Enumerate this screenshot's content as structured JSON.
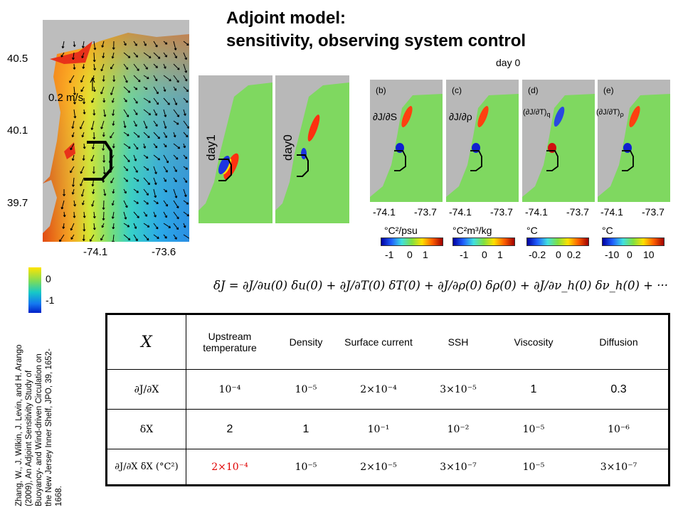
{
  "title_line1": "Adjoint model:",
  "title_line2": "sensitivity, observing system control",
  "day0_top": "day 0",
  "main_map": {
    "lat_ticks": [
      "40.5",
      "40.1",
      "39.7"
    ],
    "lon_ticks": [
      "-74.1",
      "-73.6"
    ],
    "velocity_scale": "0.2 m/s",
    "colorbar_ticks": [
      "0",
      "-1"
    ]
  },
  "mid_panels": {
    "labels": [
      "day1",
      "day0"
    ]
  },
  "right_panels": [
    {
      "letter": "(b)",
      "quantity": "∂J/∂S",
      "unit": "°C²/psu",
      "ticks": [
        "-1",
        "0",
        "1"
      ]
    },
    {
      "letter": "(c)",
      "quantity": "∂J/∂ρ",
      "unit": "°C²m³/kg",
      "ticks": [
        "-1",
        "0",
        "1"
      ]
    },
    {
      "letter": "(d)",
      "quantity": "(∂J/∂T)",
      "subscript": "q",
      "unit": "°C",
      "ticks": [
        "-0.2",
        "0",
        "0.2"
      ]
    },
    {
      "letter": "(e)",
      "quantity": "(∂J/∂T)",
      "subscript": "ρ",
      "unit": "°C",
      "ticks": [
        "-10",
        "0",
        "10"
      ]
    }
  ],
  "right_lon_ticks": [
    "-74.1",
    "-73.7"
  ],
  "equation": "δJ = ∂J/∂u(0) δu(0) + ∂J/∂T(0) δT(0) + ∂J/∂ρ(0) δρ(0) + ∂J/∂ν_h(0) δν_h(0) + ···",
  "table": {
    "headers": [
      "X",
      "Upstream temperature",
      "Density",
      "Surface current",
      "SSH",
      "Viscosity",
      "Diffusion"
    ],
    "rows": [
      {
        "label": "∂J/∂X",
        "cells": [
          "10⁻⁴",
          "10⁻⁵",
          "2×10⁻⁴",
          "3×10⁻⁵",
          "1",
          "0.3"
        ]
      },
      {
        "label": "δX",
        "cells": [
          "2",
          "1",
          "10⁻¹",
          "10⁻²",
          "10⁻⁵",
          "10⁻⁶"
        ]
      },
      {
        "label": "∂J/∂X δX (°C²)",
        "cells": [
          "2×10⁻⁴",
          "10⁻⁵",
          "2×10⁻⁵",
          "3×10⁻⁷",
          "10⁻⁵",
          "3×10⁻⁷"
        ]
      }
    ]
  },
  "citation": "Zhang, W., J. Wilkin, J. Levin, and H. Arango (2009), An Adjoint Sensitivity Study of Buoyancy- and Wind-driven Circulation on the New Jersey Inner Shelf, JPO, 39, 1652-1668."
}
